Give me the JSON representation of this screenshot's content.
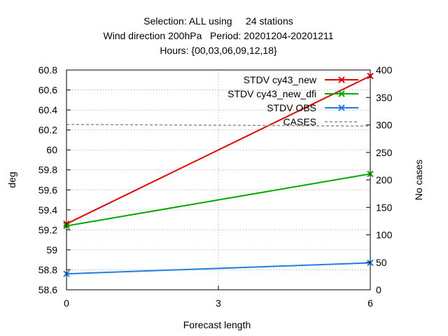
{
  "chart_data": {
    "type": "line",
    "title_lines": [
      "Selection: ALL using     24 stations",
      "Wind direction 200hPa   Period: 20201204-20201211",
      "Hours: {00,03,06,09,12,18}"
    ],
    "xlabel": "Forecast length",
    "ylabel": "deg",
    "y2label": "No cases",
    "x": [
      0,
      6
    ],
    "xticks": [
      "0",
      "3",
      "6"
    ],
    "xlim": [
      0,
      6
    ],
    "ylim": [
      58.6,
      60.8
    ],
    "yticks": [
      "58.6",
      "58.8",
      "59",
      "59.2",
      "59.4",
      "59.6",
      "59.8",
      "60",
      "60.2",
      "60.4",
      "60.6",
      "60.8"
    ],
    "y2lim": [
      0,
      400
    ],
    "y2ticks": [
      "0",
      "50",
      "100",
      "150",
      "200",
      "250",
      "300",
      "350",
      "400"
    ],
    "grid": true,
    "legend_position": "top-right",
    "series": [
      {
        "name": "STDV cy43_new",
        "axis": "y1",
        "color": "#e00000",
        "marker": "x",
        "values": [
          59.26,
          60.74
        ]
      },
      {
        "name": "STDV cy43_new_dfi",
        "axis": "y1",
        "color": "#00a800",
        "marker": "x",
        "values": [
          59.24,
          59.76
        ]
      },
      {
        "name": "STDV OBS",
        "axis": "y1",
        "color": "#1e7fe0",
        "marker": "x",
        "values": [
          58.76,
          58.87
        ]
      },
      {
        "name": "CASES",
        "axis": "y2",
        "color": "#909090",
        "dashed": true,
        "values": [
          301,
          298
        ]
      }
    ]
  }
}
